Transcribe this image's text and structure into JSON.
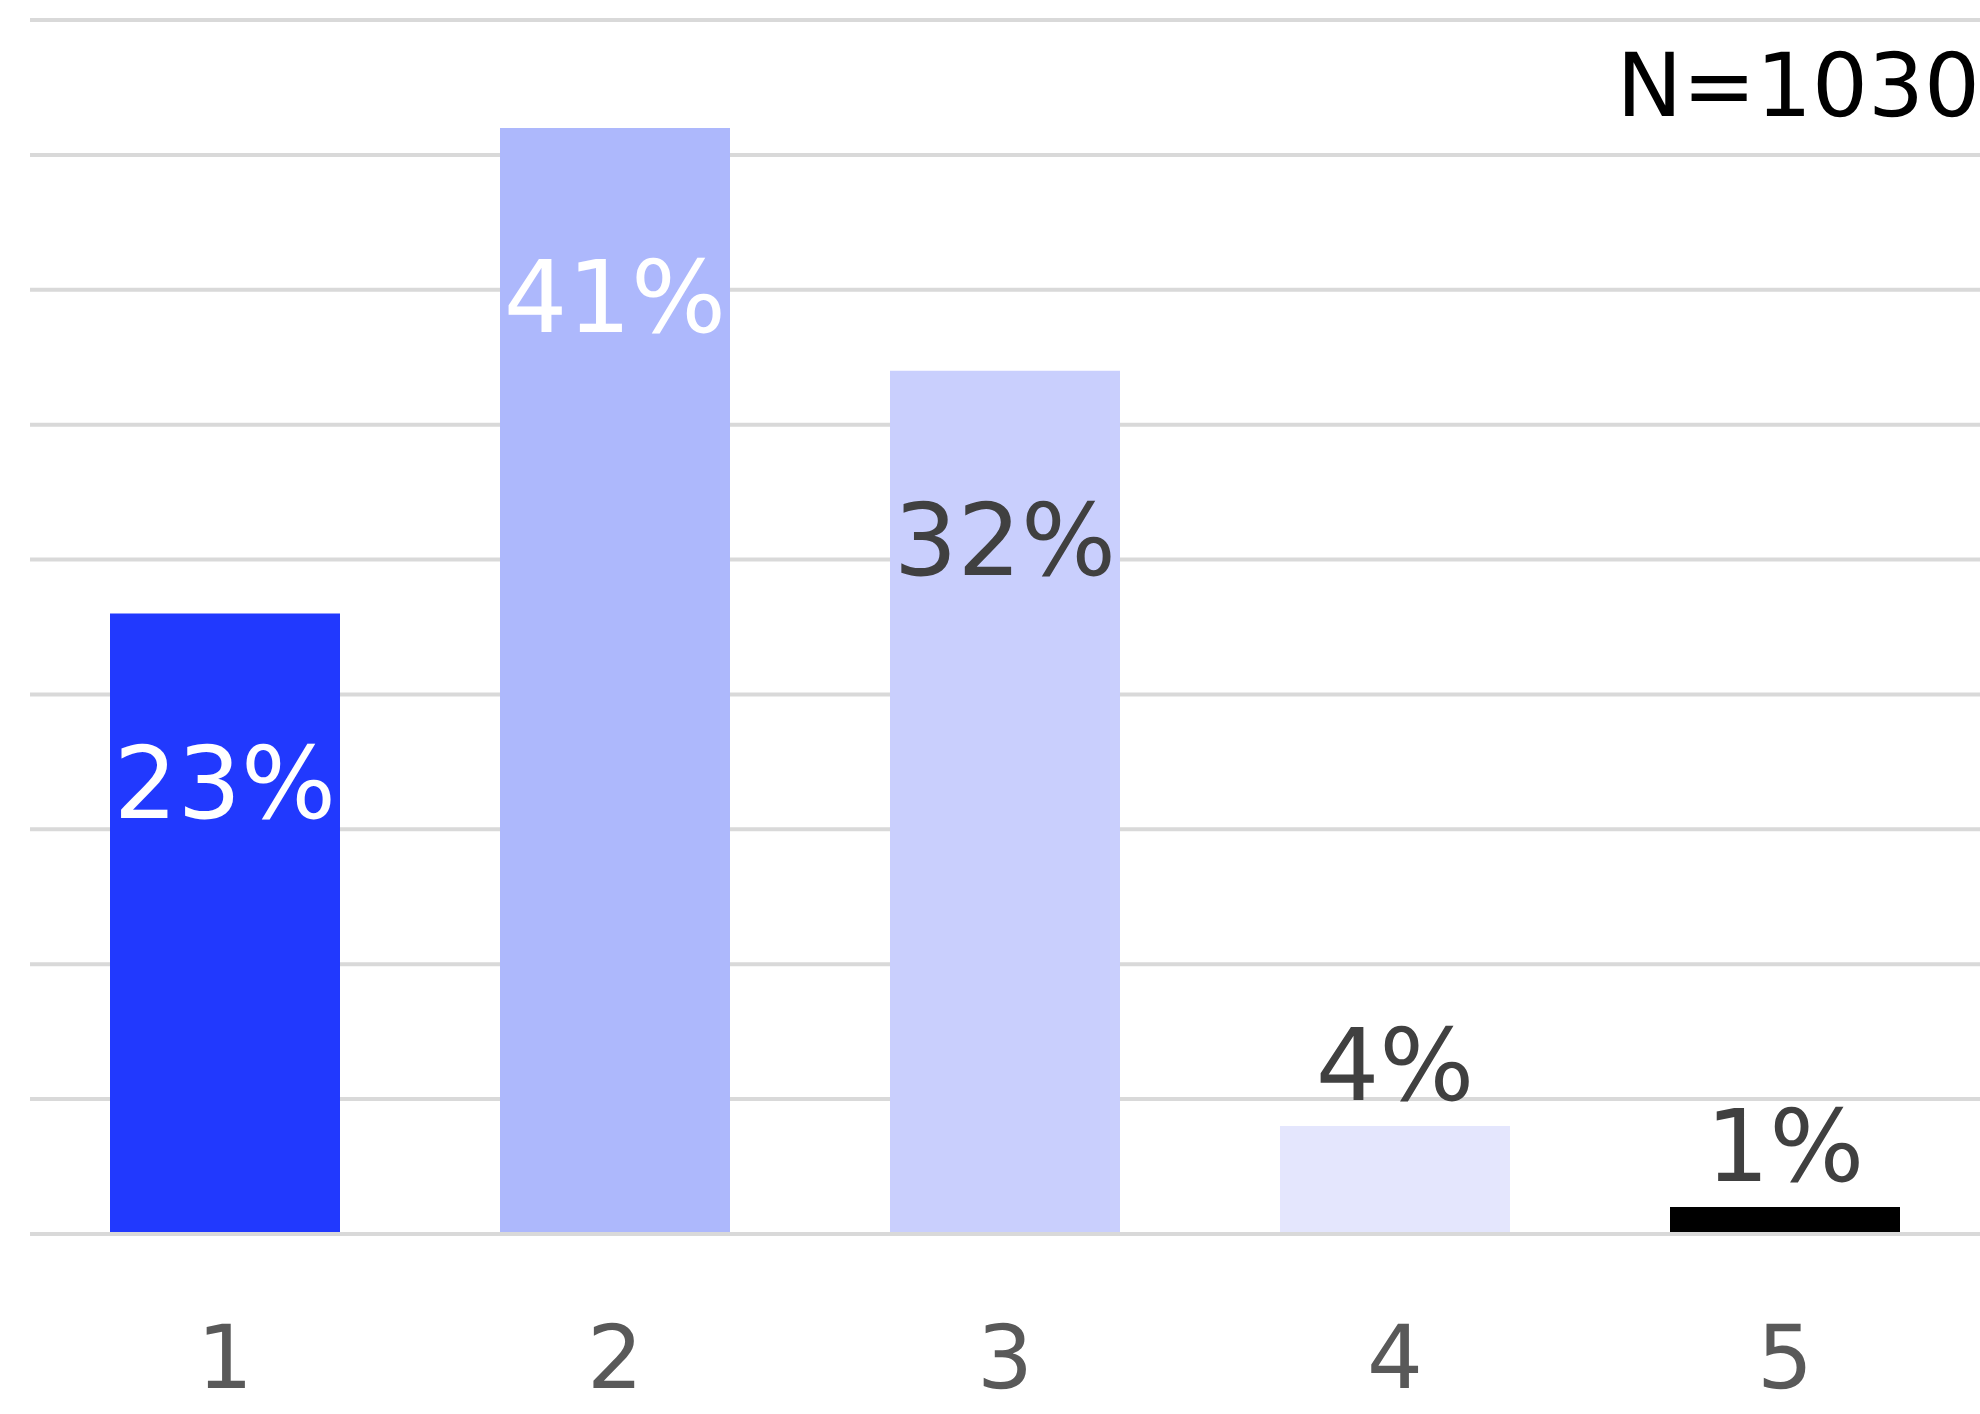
{
  "chart_data": {
    "type": "bar",
    "categories": [
      "1",
      "2",
      "3",
      "4",
      "5"
    ],
    "values": [
      23,
      41,
      32,
      4,
      1
    ],
    "colors": [
      "#2139fe",
      "#adb8fc",
      "#c9cffd",
      "#e4e6fd",
      "#000000"
    ],
    "value_labels": [
      "23%",
      "41%",
      "32%",
      "4%",
      "1%"
    ],
    "ylim": [
      0,
      45
    ],
    "yticks": [
      {
        "value": 0,
        "label": null
      },
      {
        "value": 5,
        "label": null
      },
      {
        "value": 10,
        "label": null
      },
      {
        "value": 15,
        "label": null
      },
      {
        "value": 20,
        "label": null
      },
      {
        "value": 25,
        "label": null
      },
      {
        "value": 30,
        "label": null
      },
      {
        "value": 35,
        "label": null
      },
      {
        "value": 40,
        "label": null
      },
      {
        "value": 45,
        "label": null
      }
    ],
    "tick_labels": "x",
    "grid": "y",
    "legend": false,
    "annotations": [
      "N=1030"
    ]
  }
}
